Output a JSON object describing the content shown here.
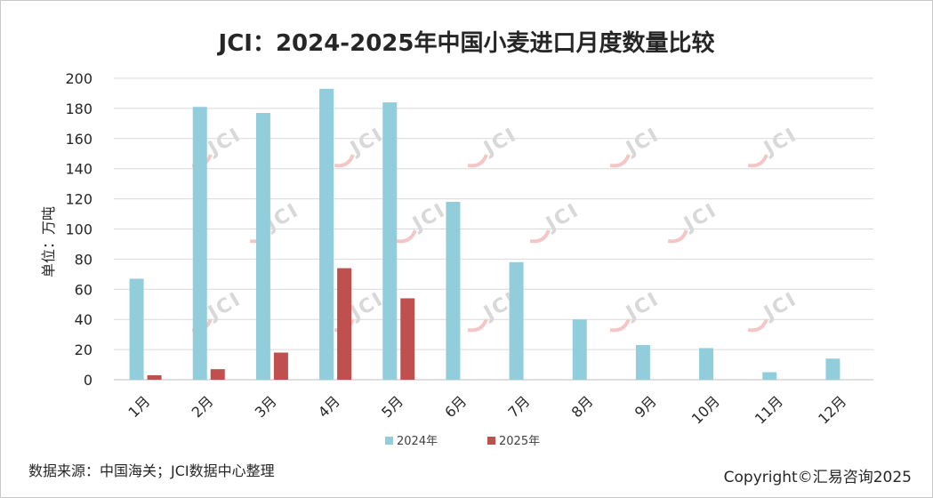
{
  "chart_data": {
    "type": "bar",
    "title": "JCI：2024-2025年中国小麦进口月度数量比较",
    "ylabel": "单位：万吨",
    "xlabel": "",
    "ylim": [
      0,
      200
    ],
    "yticks": [
      0,
      20,
      40,
      60,
      80,
      100,
      120,
      140,
      160,
      180,
      200
    ],
    "grid": true,
    "legend_position": "bottom-center",
    "categories": [
      "1月",
      "2月",
      "3月",
      "4月",
      "5月",
      "6月",
      "7月",
      "8月",
      "9月",
      "10月",
      "11月",
      "12月"
    ],
    "series": [
      {
        "name": "2024年",
        "color": "#92cddc",
        "values": [
          67,
          181,
          177,
          193,
          184,
          118,
          78,
          40,
          23,
          21,
          5,
          14
        ]
      },
      {
        "name": "2025年",
        "color": "#c0504d",
        "values": [
          3,
          7,
          18,
          74,
          54,
          null,
          null,
          null,
          null,
          null,
          null,
          null
        ]
      }
    ]
  },
  "footer": {
    "source": "数据来源：中国海关；JCI数据中心整理",
    "copyright": "Copyright©汇易咨询2025"
  },
  "watermark": {
    "text": "JCI"
  }
}
